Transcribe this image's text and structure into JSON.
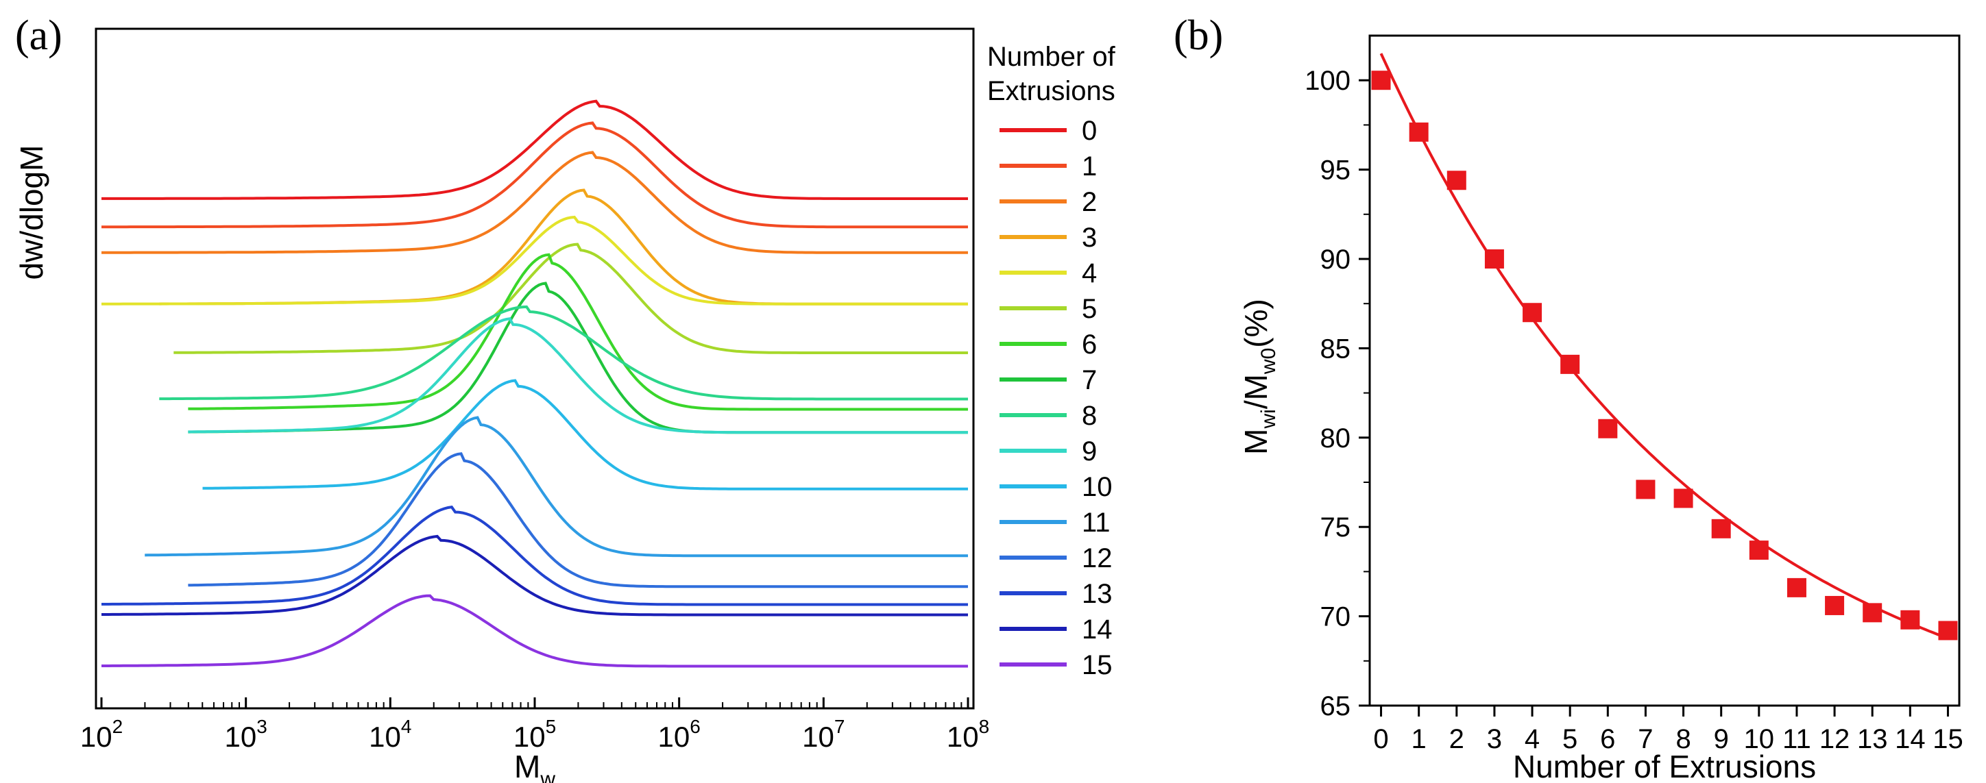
{
  "chart_data": [
    {
      "panel": "(a)",
      "type": "line",
      "ylabel": "dw/dlogM",
      "xlabel": "M",
      "xlabel_subscript": "w",
      "xscale": "log",
      "xlim": [
        100,
        100000000
      ],
      "x_ticks": [
        {
          "base": "10",
          "exp": "2"
        },
        {
          "base": "10",
          "exp": "3"
        },
        {
          "base": "10",
          "exp": "4"
        },
        {
          "base": "10",
          "exp": "5"
        },
        {
          "base": "10",
          "exp": "6"
        },
        {
          "base": "10",
          "exp": "7"
        },
        {
          "base": "10",
          "exp": "8"
        }
      ],
      "legend_title": [
        "Number of",
        "Extrusions"
      ],
      "legend_placement": "right",
      "y_units": "arbitrary offset",
      "series": [
        {
          "name": "0",
          "color": "#e8181d",
          "x_start_log": 2.0,
          "x_end_log": 8.0,
          "baseline": 9.6,
          "peak_log_m": 5.45,
          "peak_height": 1.8,
          "width": 0.42
        },
        {
          "name": "1",
          "color": "#f24a22",
          "x_start_log": 2.0,
          "x_end_log": 8.0,
          "baseline": 9.05,
          "peak_log_m": 5.42,
          "peak_height": 1.92,
          "width": 0.42
        },
        {
          "name": "2",
          "color": "#f57a1c",
          "x_start_log": 2.0,
          "x_end_log": 8.0,
          "baseline": 8.55,
          "peak_log_m": 5.42,
          "peak_height": 1.85,
          "width": 0.4
        },
        {
          "name": "3",
          "color": "#f2a51a",
          "x_start_log": 2.4,
          "x_end_log": 8.0,
          "baseline": 7.55,
          "peak_log_m": 5.35,
          "peak_height": 2.1,
          "width": 0.36
        },
        {
          "name": "4",
          "color": "#e3e32a",
          "x_start_log": 2.0,
          "x_end_log": 8.0,
          "baseline": 7.55,
          "peak_log_m": 5.28,
          "peak_height": 1.6,
          "width": 0.34
        },
        {
          "name": "5",
          "color": "#a6d82a",
          "x_start_log": 2.5,
          "x_end_log": 8.0,
          "baseline": 6.6,
          "peak_log_m": 5.3,
          "peak_height": 2.0,
          "width": 0.38
        },
        {
          "name": "6",
          "color": "#3ad62a",
          "x_start_log": 2.6,
          "x_end_log": 8.0,
          "baseline": 5.5,
          "peak_log_m": 5.1,
          "peak_height": 2.85,
          "width": 0.34
        },
        {
          "name": "7",
          "color": "#1fc43b",
          "x_start_log": 2.6,
          "x_end_log": 8.0,
          "baseline": 5.05,
          "peak_log_m": 5.08,
          "peak_height": 2.75,
          "width": 0.32
        },
        {
          "name": "8",
          "color": "#2bd68a",
          "x_start_log": 2.4,
          "x_end_log": 8.0,
          "baseline": 5.7,
          "peak_log_m": 4.95,
          "peak_height": 1.7,
          "width": 0.5
        },
        {
          "name": "9",
          "color": "#34d8c6",
          "x_start_log": 2.6,
          "x_end_log": 8.0,
          "baseline": 5.05,
          "peak_log_m": 4.85,
          "peak_height": 2.1,
          "width": 0.4
        },
        {
          "name": "10",
          "color": "#26b8e8",
          "x_start_log": 2.7,
          "x_end_log": 8.0,
          "baseline": 3.95,
          "peak_log_m": 4.88,
          "peak_height": 2.0,
          "width": 0.38
        },
        {
          "name": "11",
          "color": "#2e9ce4",
          "x_start_log": 2.3,
          "x_end_log": 8.0,
          "baseline": 2.65,
          "peak_log_m": 4.62,
          "peak_height": 2.55,
          "width": 0.36
        },
        {
          "name": "12",
          "color": "#2f6edc",
          "x_start_log": 2.6,
          "x_end_log": 8.0,
          "baseline": 2.05,
          "peak_log_m": 4.5,
          "peak_height": 2.45,
          "width": 0.36
        },
        {
          "name": "13",
          "color": "#2244d0",
          "x_start_log": 2.0,
          "x_end_log": 8.0,
          "baseline": 1.7,
          "peak_log_m": 4.45,
          "peak_height": 1.8,
          "width": 0.4
        },
        {
          "name": "14",
          "color": "#1a1fb5",
          "x_start_log": 2.0,
          "x_end_log": 8.0,
          "baseline": 1.5,
          "peak_log_m": 4.35,
          "peak_height": 1.45,
          "width": 0.4
        },
        {
          "name": "15",
          "color": "#8a33e0",
          "x_start_log": 2.0,
          "x_end_log": 8.0,
          "baseline": 0.5,
          "peak_log_m": 4.28,
          "peak_height": 1.3,
          "width": 0.42
        }
      ]
    },
    {
      "panel": "(b)",
      "type": "scatter",
      "xlabel": "Number of Extrusions",
      "ylabel_parts": {
        "m1": "M",
        "sub1": "wi",
        "slash": "/M",
        "sub2": "w0",
        "tail": "(%)"
      },
      "xlim": [
        -0.3,
        15.3
      ],
      "ylim": [
        65,
        102.5
      ],
      "x_ticks": [
        0,
        1,
        2,
        3,
        4,
        5,
        6,
        7,
        8,
        9,
        10,
        11,
        12,
        13,
        14,
        15
      ],
      "y_ticks": [
        65,
        70,
        75,
        80,
        85,
        90,
        95,
        100
      ],
      "marker_color": "#e8181d",
      "marker": "square",
      "x": [
        0,
        1,
        2,
        3,
        4,
        5,
        6,
        7,
        8,
        9,
        10,
        11,
        12,
        13,
        14,
        15
      ],
      "y": [
        100.0,
        97.1,
        94.4,
        90.0,
        87.0,
        84.1,
        80.5,
        77.1,
        76.6,
        74.9,
        73.7,
        71.6,
        70.6,
        70.2,
        69.8,
        69.2
      ],
      "fit": {
        "type": "exponential decay",
        "color": "#e8181d",
        "y0": 62.0,
        "a": 39.5,
        "t": 8.5,
        "x_range": [
          0,
          15
        ]
      }
    }
  ],
  "panel_labels": {
    "a": "(a)",
    "b": "(b)"
  }
}
